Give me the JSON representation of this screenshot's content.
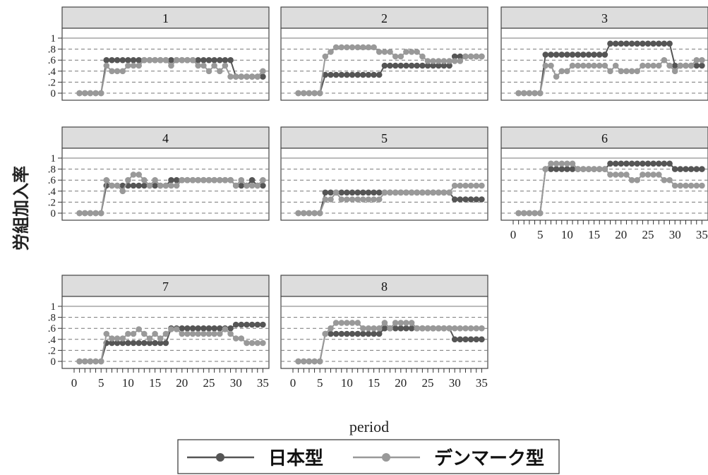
{
  "chart_data": {
    "type": "line",
    "ylabel": "労組加入率",
    "xlabel": "period",
    "xlim": [
      0,
      35
    ],
    "ylim": [
      0,
      1
    ],
    "yticks": [
      {
        "v": 0,
        "label": "0"
      },
      {
        "v": 0.2,
        "label": ".2"
      },
      {
        "v": 0.4,
        "label": ".4"
      },
      {
        "v": 0.6,
        "label": ".6"
      },
      {
        "v": 0.8,
        "label": ".8"
      },
      {
        "v": 1,
        "label": "1"
      }
    ],
    "xticks": [
      "0",
      "5",
      "10",
      "15",
      "20",
      "25",
      "30",
      "35"
    ],
    "grid": true,
    "legend": {
      "position": "bottom",
      "entries": [
        "日本型",
        "デンマーク型"
      ]
    },
    "colors": {
      "japan": "#555555",
      "denmark": "#999999",
      "strip": "#dddddd"
    },
    "panels": [
      {
        "title": "1",
        "series": [
          {
            "name": "日本型",
            "segments": [
              [
                1,
                5,
                0
              ],
              [
                6,
                17,
                0.6
              ],
              [
                18,
                18,
                0.6
              ],
              [
                19,
                29,
                0.6
              ],
              [
                30,
                34,
                0.3
              ],
              [
                35,
                35,
                0.3
              ]
            ]
          },
          {
            "name": "デンマーク型",
            "segments": [
              [
                1,
                5,
                0
              ],
              [
                6,
                6,
                0.5
              ],
              [
                7,
                9,
                0.4
              ],
              [
                10,
                12,
                0.5
              ],
              [
                13,
                17,
                0.6
              ],
              [
                18,
                18,
                0.5
              ],
              [
                19,
                22,
                0.6
              ],
              [
                23,
                24,
                0.5
              ],
              [
                25,
                25,
                0.4
              ],
              [
                26,
                26,
                0.5
              ],
              [
                27,
                27,
                0.4
              ],
              [
                28,
                28,
                0.5
              ],
              [
                29,
                34,
                0.3
              ],
              [
                35,
                35,
                0.4
              ]
            ]
          }
        ]
      },
      {
        "title": "2",
        "series": [
          {
            "name": "日本型",
            "segments": [
              [
                1,
                5,
                0
              ],
              [
                6,
                16,
                0.333
              ],
              [
                17,
                29,
                0.5
              ],
              [
                30,
                31,
                0.667
              ],
              [
                32,
                35,
                0.667
              ]
            ]
          },
          {
            "name": "デンマーク型",
            "segments": [
              [
                1,
                5,
                0
              ],
              [
                6,
                6,
                0.667
              ],
              [
                7,
                7,
                0.75
              ],
              [
                8,
                15,
                0.833
              ],
              [
                16,
                18,
                0.75
              ],
              [
                19,
                20,
                0.667
              ],
              [
                21,
                23,
                0.75
              ],
              [
                24,
                24,
                0.667
              ],
              [
                25,
                30,
                0.583
              ],
              [
                31,
                31,
                0.583
              ],
              [
                32,
                35,
                0.667
              ]
            ]
          }
        ]
      },
      {
        "title": "3",
        "series": [
          {
            "name": "日本型",
            "segments": [
              [
                1,
                5,
                0
              ],
              [
                6,
                17,
                0.7
              ],
              [
                18,
                29,
                0.9
              ],
              [
                30,
                35,
                0.5
              ]
            ]
          },
          {
            "name": "デンマーク型",
            "segments": [
              [
                1,
                5,
                0
              ],
              [
                6,
                7,
                0.5
              ],
              [
                8,
                8,
                0.3
              ],
              [
                9,
                10,
                0.4
              ],
              [
                11,
                17,
                0.5
              ],
              [
                18,
                18,
                0.4
              ],
              [
                19,
                19,
                0.5
              ],
              [
                20,
                23,
                0.4
              ],
              [
                24,
                27,
                0.5
              ],
              [
                28,
                28,
                0.6
              ],
              [
                29,
                29,
                0.5
              ],
              [
                30,
                30,
                0.4
              ],
              [
                31,
                33,
                0.5
              ],
              [
                34,
                35,
                0.6
              ]
            ]
          }
        ]
      },
      {
        "title": "4",
        "series": [
          {
            "name": "日本型",
            "segments": [
              [
                1,
                5,
                0
              ],
              [
                6,
                8,
                0.5
              ],
              [
                9,
                17,
                0.5
              ],
              [
                18,
                19,
                0.6
              ],
              [
                20,
                29,
                0.6
              ],
              [
                30,
                32,
                0.5
              ],
              [
                33,
                33,
                0.6
              ],
              [
                34,
                35,
                0.5
              ]
            ]
          },
          {
            "name": "デンマーク型",
            "segments": [
              [
                1,
                5,
                0
              ],
              [
                6,
                6,
                0.6
              ],
              [
                7,
                8,
                0.5
              ],
              [
                9,
                9,
                0.4
              ],
              [
                10,
                10,
                0.6
              ],
              [
                11,
                12,
                0.7
              ],
              [
                13,
                13,
                0.6
              ],
              [
                14,
                14,
                0.5
              ],
              [
                15,
                15,
                0.6
              ],
              [
                16,
                19,
                0.5
              ],
              [
                20,
                29,
                0.6
              ],
              [
                30,
                30,
                0.5
              ],
              [
                31,
                31,
                0.6
              ],
              [
                32,
                34,
                0.5
              ],
              [
                35,
                35,
                0.6
              ]
            ]
          }
        ]
      },
      {
        "title": "5",
        "series": [
          {
            "name": "日本型",
            "segments": [
              [
                1,
                5,
                0
              ],
              [
                6,
                29,
                0.375
              ],
              [
                30,
                35,
                0.25
              ]
            ]
          },
          {
            "name": "デンマーク型",
            "segments": [
              [
                1,
                5,
                0
              ],
              [
                6,
                7,
                0.25
              ],
              [
                8,
                8,
                0.375
              ],
              [
                9,
                16,
                0.25
              ],
              [
                17,
                29,
                0.375
              ],
              [
                30,
                35,
                0.5
              ]
            ]
          }
        ]
      },
      {
        "title": "6",
        "series": [
          {
            "name": "日本型",
            "segments": [
              [
                1,
                5,
                0
              ],
              [
                6,
                17,
                0.8
              ],
              [
                18,
                29,
                0.9
              ],
              [
                30,
                35,
                0.8
              ]
            ]
          },
          {
            "name": "デンマーク型",
            "segments": [
              [
                1,
                5,
                0
              ],
              [
                6,
                6,
                0.8
              ],
              [
                7,
                11,
                0.9
              ],
              [
                12,
                17,
                0.8
              ],
              [
                18,
                21,
                0.7
              ],
              [
                22,
                23,
                0.6
              ],
              [
                24,
                27,
                0.7
              ],
              [
                28,
                29,
                0.6
              ],
              [
                30,
                35,
                0.5
              ]
            ]
          }
        ]
      },
      {
        "title": "7",
        "series": [
          {
            "name": "日本型",
            "segments": [
              [
                1,
                5,
                0
              ],
              [
                6,
                17,
                0.333
              ],
              [
                18,
                25,
                0.6
              ],
              [
                26,
                28,
                0.6
              ],
              [
                29,
                29,
                0.6
              ],
              [
                30,
                35,
                0.667
              ]
            ]
          },
          {
            "name": "デンマーク型",
            "segments": [
              [
                1,
                5,
                0
              ],
              [
                6,
                6,
                0.5
              ],
              [
                7,
                9,
                0.417
              ],
              [
                10,
                11,
                0.5
              ],
              [
                12,
                12,
                0.583
              ],
              [
                13,
                13,
                0.5
              ],
              [
                14,
                14,
                0.417
              ],
              [
                15,
                15,
                0.5
              ],
              [
                16,
                16,
                0.417
              ],
              [
                17,
                17,
                0.5
              ],
              [
                18,
                19,
                0.583
              ],
              [
                20,
                24,
                0.5
              ],
              [
                25,
                27,
                0.5
              ],
              [
                28,
                28,
                0.583
              ],
              [
                29,
                29,
                0.5
              ],
              [
                30,
                31,
                0.417
              ],
              [
                32,
                35,
                0.333
              ]
            ]
          }
        ]
      },
      {
        "title": "8",
        "series": [
          {
            "name": "日本型",
            "segments": [
              [
                1,
                5,
                0
              ],
              [
                6,
                16,
                0.5
              ],
              [
                17,
                22,
                0.6
              ],
              [
                23,
                29,
                0.6
              ],
              [
                30,
                35,
                0.4
              ]
            ]
          },
          {
            "name": "デンマーク型",
            "segments": [
              [
                1,
                5,
                0
              ],
              [
                6,
                6,
                0.5
              ],
              [
                7,
                7,
                0.6
              ],
              [
                8,
                12,
                0.7
              ],
              [
                13,
                16,
                0.6
              ],
              [
                17,
                17,
                0.7
              ],
              [
                18,
                18,
                0.6
              ],
              [
                19,
                22,
                0.7
              ],
              [
                23,
                35,
                0.6
              ]
            ]
          }
        ]
      }
    ]
  }
}
